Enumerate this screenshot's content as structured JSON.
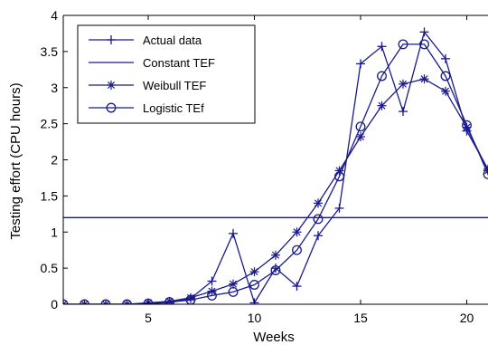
{
  "chart_data": {
    "type": "line",
    "title": "",
    "xlabel": "Weeks",
    "ylabel": "Testing effort (CPU hours)",
    "xlim": [
      1,
      21
    ],
    "ylim": [
      0,
      4
    ],
    "grid": false,
    "legend_position": "top-left",
    "xticks": [
      5,
      10,
      15,
      20
    ],
    "yticks": [
      0,
      0.5,
      1,
      1.5,
      2,
      2.5,
      3,
      3.5,
      4
    ],
    "xtick_labels": [
      "5",
      "10",
      "15",
      "20"
    ],
    "ytick_labels": [
      "0",
      "0.5",
      "1",
      "1.5",
      "2",
      "2.5",
      "3",
      "3.5",
      "4"
    ],
    "line_color": "#1a1a8c",
    "series": [
      {
        "name": "Actual data",
        "marker": "plus",
        "x": [
          1,
          2,
          3,
          4,
          5,
          6,
          7,
          8,
          9,
          10,
          11,
          12,
          13,
          14,
          15,
          16,
          17,
          18,
          19,
          20,
          21
        ],
        "y": [
          0,
          0,
          0,
          0,
          0.01,
          0.02,
          0.08,
          0.32,
          0.98,
          0.02,
          0.5,
          0.25,
          0.95,
          1.33,
          3.33,
          3.57,
          2.67,
          3.77,
          3.4,
          2.4,
          1.87
        ]
      },
      {
        "name": "Constant TEF",
        "marker": "none",
        "x": [
          1,
          21
        ],
        "y": [
          1.2,
          1.2
        ]
      },
      {
        "name": "Weibull TEF",
        "marker": "star",
        "x": [
          1,
          2,
          3,
          4,
          5,
          6,
          7,
          8,
          9,
          10,
          11,
          12,
          13,
          14,
          15,
          16,
          17,
          18,
          19,
          20,
          21
        ],
        "y": [
          0,
          0,
          0,
          0,
          0.02,
          0.04,
          0.09,
          0.18,
          0.28,
          0.45,
          0.68,
          1.0,
          1.4,
          1.85,
          2.32,
          2.75,
          3.05,
          3.12,
          2.95,
          2.45,
          1.85
        ]
      },
      {
        "name": "Logistic TEf",
        "marker": "circle",
        "x": [
          1,
          2,
          3,
          4,
          5,
          6,
          7,
          8,
          9,
          10,
          11,
          12,
          13,
          14,
          15,
          16,
          17,
          18,
          19,
          20,
          21
        ],
        "y": [
          0,
          0,
          0,
          0,
          0.01,
          0.03,
          0.06,
          0.12,
          0.17,
          0.27,
          0.47,
          0.75,
          1.18,
          1.77,
          2.46,
          3.16,
          3.6,
          3.6,
          3.16,
          2.48,
          1.8
        ]
      }
    ]
  }
}
